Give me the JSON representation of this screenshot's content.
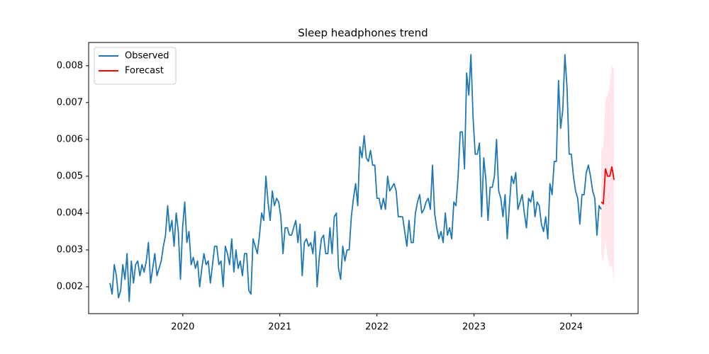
{
  "chart_data": {
    "type": "line",
    "title": "Sleep headphones trend",
    "xlim": [
      2019.03,
      2024.69
    ],
    "xticks": [
      2020,
      2021,
      2022,
      2023,
      2024
    ],
    "ylim": [
      0.00127,
      0.00863
    ],
    "yticks": [
      0.002,
      0.003,
      0.004,
      0.005,
      0.006,
      0.007,
      0.008
    ],
    "legend": "upper left",
    "series": [
      {
        "name": "Observed",
        "color": "#1f77b4",
        "x": [
          2019.25,
          2019.272,
          2019.294,
          2019.316,
          2019.338,
          2019.36,
          2019.382,
          2019.404,
          2019.426,
          2019.448,
          2019.47,
          2019.492,
          2019.514,
          2019.536,
          2019.558,
          2019.58,
          2019.602,
          2019.624,
          2019.646,
          2019.668,
          2019.69,
          2019.712,
          2019.734,
          2019.756,
          2019.778,
          2019.8,
          2019.822,
          2019.844,
          2019.866,
          2019.888,
          2019.91,
          2019.932,
          2019.954,
          2019.976,
          2019.998,
          2020.02,
          2020.042,
          2020.064,
          2020.086,
          2020.108,
          2020.13,
          2020.152,
          2020.174,
          2020.196,
          2020.218,
          2020.24,
          2020.262,
          2020.284,
          2020.306,
          2020.328,
          2020.35,
          2020.372,
          2020.394,
          2020.416,
          2020.438,
          2020.46,
          2020.482,
          2020.504,
          2020.526,
          2020.548,
          2020.57,
          2020.592,
          2020.614,
          2020.636,
          2020.658,
          2020.68,
          2020.702,
          2020.724,
          2020.746,
          2020.768,
          2020.79,
          2020.812,
          2020.834,
          2020.856,
          2020.878,
          2020.9,
          2020.922,
          2020.944,
          2020.966,
          2020.988,
          2021.01,
          2021.032,
          2021.054,
          2021.076,
          2021.098,
          2021.12,
          2021.142,
          2021.164,
          2021.186,
          2021.208,
          2021.23,
          2021.252,
          2021.274,
          2021.296,
          2021.318,
          2021.34,
          2021.362,
          2021.384,
          2021.406,
          2021.428,
          2021.45,
          2021.472,
          2021.494,
          2021.516,
          2021.538,
          2021.56,
          2021.582,
          2021.604,
          2021.626,
          2021.648,
          2021.67,
          2021.692,
          2021.714,
          2021.736,
          2021.758,
          2021.78,
          2021.802,
          2021.824,
          2021.846,
          2021.868,
          2021.89,
          2021.912,
          2021.934,
          2021.956,
          2021.978,
          2022.0,
          2022.022,
          2022.044,
          2022.066,
          2022.088,
          2022.11,
          2022.132,
          2022.154,
          2022.176,
          2022.198,
          2022.22,
          2022.242,
          2022.264,
          2022.286,
          2022.308,
          2022.33,
          2022.352,
          2022.374,
          2022.396,
          2022.418,
          2022.44,
          2022.462,
          2022.484,
          2022.506,
          2022.528,
          2022.55,
          2022.572,
          2022.594,
          2022.616,
          2022.638,
          2022.66,
          2022.682,
          2022.704,
          2022.726,
          2022.748,
          2022.77,
          2022.792,
          2022.814,
          2022.836,
          2022.858,
          2022.88,
          2022.902,
          2022.924,
          2022.946,
          2022.968,
          2022.99,
          2023.012,
          2023.034,
          2023.056,
          2023.078,
          2023.1,
          2023.122,
          2023.144,
          2023.166,
          2023.188,
          2023.21,
          2023.232,
          2023.254,
          2023.276,
          2023.298,
          2023.32,
          2023.342,
          2023.364,
          2023.386,
          2023.408,
          2023.43,
          2023.452,
          2023.474,
          2023.496,
          2023.518,
          2023.54,
          2023.562,
          2023.584,
          2023.606,
          2023.628,
          2023.65,
          2023.672,
          2023.694,
          2023.716,
          2023.738,
          2023.76,
          2023.782,
          2023.804,
          2023.826,
          2023.848,
          2023.87,
          2023.892,
          2023.914,
          2023.936,
          2023.958,
          2023.98,
          2024.002,
          2024.024,
          2024.046,
          2024.068,
          2024.09,
          2024.112,
          2024.134,
          2024.156,
          2024.178,
          2024.2,
          2024.222,
          2024.244,
          2024.266,
          2024.288,
          2024.31
        ],
        "values": [
          0.0021,
          0.0018,
          0.0026,
          0.0023,
          0.0017,
          0.0019,
          0.0026,
          0.0022,
          0.0029,
          0.0016,
          0.0027,
          0.0021,
          0.0026,
          0.0027,
          0.0023,
          0.0026,
          0.0024,
          0.0027,
          0.0032,
          0.0021,
          0.0025,
          0.0029,
          0.0023,
          0.0025,
          0.0027,
          0.0031,
          0.0034,
          0.0042,
          0.0035,
          0.0038,
          0.0031,
          0.004,
          0.0035,
          0.0022,
          0.0036,
          0.0043,
          0.0032,
          0.0035,
          0.0026,
          0.0028,
          0.0025,
          0.0027,
          0.002,
          0.0025,
          0.0029,
          0.0026,
          0.0027,
          0.0021,
          0.0026,
          0.0031,
          0.0031,
          0.0026,
          0.0027,
          0.002,
          0.0031,
          0.0029,
          0.0026,
          0.0033,
          0.0024,
          0.003,
          0.0025,
          0.0027,
          0.0023,
          0.0029,
          0.0029,
          0.0019,
          0.0018,
          0.0033,
          0.0031,
          0.0029,
          0.0034,
          0.004,
          0.0038,
          0.005,
          0.0043,
          0.0038,
          0.0046,
          0.0042,
          0.0044,
          0.0043,
          0.0039,
          0.0029,
          0.0036,
          0.0036,
          0.0034,
          0.0034,
          0.0036,
          0.0038,
          0.0032,
          0.0037,
          0.0023,
          0.0032,
          0.0033,
          0.0031,
          0.0032,
          0.0029,
          0.0035,
          0.002,
          0.0028,
          0.0033,
          0.0034,
          0.0029,
          0.0029,
          0.0036,
          0.0029,
          0.0039,
          0.004,
          0.0025,
          0.0022,
          0.0031,
          0.0027,
          0.003,
          0.003,
          0.0039,
          0.0044,
          0.0048,
          0.0042,
          0.0058,
          0.0055,
          0.0061,
          0.0055,
          0.0054,
          0.0057,
          0.0053,
          0.0053,
          0.0044,
          0.0044,
          0.0041,
          0.0044,
          0.0041,
          0.005,
          0.0046,
          0.0047,
          0.0048,
          0.0046,
          0.0039,
          0.0039,
          0.0039,
          0.0035,
          0.0031,
          0.0038,
          0.0032,
          0.0032,
          0.004,
          0.0043,
          0.0045,
          0.004,
          0.0041,
          0.0043,
          0.0044,
          0.0041,
          0.0053,
          0.004,
          0.0036,
          0.0033,
          0.0035,
          0.0032,
          0.004,
          0.0034,
          0.0036,
          0.0033,
          0.0043,
          0.0042,
          0.005,
          0.0062,
          0.0062,
          0.0052,
          0.0078,
          0.0072,
          0.0083,
          0.0066,
          0.0056,
          0.0056,
          0.0059,
          0.0039,
          0.0055,
          0.0049,
          0.0038,
          0.0047,
          0.0047,
          0.005,
          0.006,
          0.0046,
          0.0044,
          0.0039,
          0.0045,
          0.0033,
          0.0042,
          0.005,
          0.0048,
          0.0051,
          0.0041,
          0.0043,
          0.0045,
          0.004,
          0.0036,
          0.0044,
          0.0043,
          0.0046,
          0.0039,
          0.0043,
          0.0042,
          0.0037,
          0.0035,
          0.0039,
          0.0033,
          0.0048,
          0.0045,
          0.0054,
          0.0054,
          0.0076,
          0.0063,
          0.0068,
          0.0083,
          0.0074,
          0.0056,
          0.0056,
          0.005,
          0.0046,
          0.0044,
          0.0037,
          0.0045,
          0.0045,
          0.0051,
          0.0053,
          0.005,
          0.0046,
          0.0044,
          0.0034,
          0.0042,
          0.0041
        ]
      },
      {
        "name": "Forecast",
        "color": "#ff0000",
        "x": [
          2024.31,
          2024.332,
          2024.354,
          2024.376,
          2024.398,
          2024.42,
          2024.442
        ],
        "values": [
          0.0043,
          0.00425,
          0.0052,
          0.005,
          0.005,
          0.00525,
          0.0049
        ]
      }
    ],
    "band": {
      "color": "#ffc0cb",
      "x": [
        2024.31,
        2024.332,
        2024.354,
        2024.376,
        2024.398,
        2024.42,
        2024.442
      ],
      "lower": [
        0.0029,
        0.0027,
        0.0033,
        0.0028,
        0.0025,
        0.0026,
        0.0021
      ],
      "upper": [
        0.0057,
        0.0058,
        0.0071,
        0.0072,
        0.0075,
        0.008,
        0.0079
      ]
    }
  }
}
